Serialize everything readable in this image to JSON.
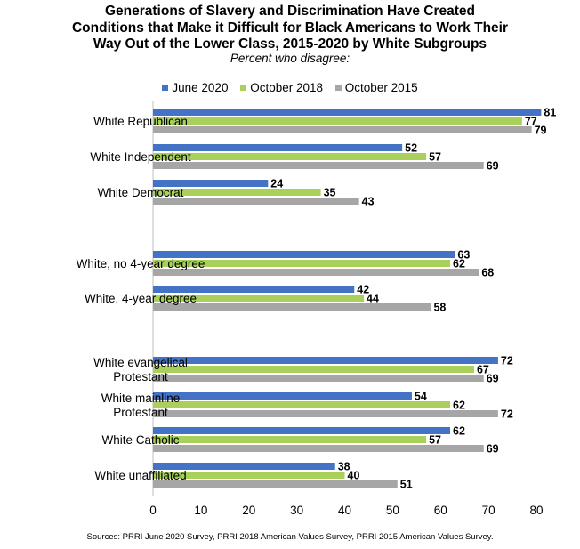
{
  "title_lines": [
    "Generations of Slavery and Discrimination Have Created",
    "Conditions that Make it Difficult for Black Americans to Work Their",
    "Way Out of the Lower Class, 2015-2020 by White Subgroups"
  ],
  "subtitle": "Percent who disagree:",
  "source": "Sources: PRRI June 2020 Survey, PRRI 2018 American Values Survey, PRRI 2015 American Values Survey.",
  "colors": {
    "June 2020": "#4472c4",
    "October 2018": "#a9d05a",
    "October 2015": "#a6a6a6"
  },
  "chart_data": {
    "type": "bar",
    "orientation": "horizontal",
    "categories": [
      "White Republican",
      "White Independent",
      "White Democrat",
      "White, no 4-year degree",
      "White, 4-year degree",
      "White evangelical Protestant",
      "White mainline Protestant",
      "White Catholic",
      "White unaffiliated"
    ],
    "category_label_lines": [
      [
        "White Republican"
      ],
      [
        "White Independent"
      ],
      [
        "White Democrat"
      ],
      [
        "White, no 4-year degree"
      ],
      [
        "White, 4-year degree"
      ],
      [
        "White evangelical",
        "Protestant"
      ],
      [
        "White mainline",
        "Protestant"
      ],
      [
        "White Catholic"
      ],
      [
        "White unaffiliated"
      ]
    ],
    "category_groups": [
      [
        0,
        1,
        2
      ],
      [
        3,
        4
      ],
      [
        5,
        6,
        7,
        8
      ]
    ],
    "series": [
      {
        "name": "June 2020",
        "values": [
          81,
          52,
          24,
          63,
          42,
          72,
          54,
          62,
          38
        ]
      },
      {
        "name": "October 2018",
        "values": [
          77,
          57,
          35,
          62,
          44,
          67,
          62,
          57,
          40
        ]
      },
      {
        "name": "October 2015",
        "values": [
          79,
          69,
          43,
          68,
          58,
          69,
          72,
          69,
          51
        ]
      }
    ],
    "xlim": [
      0,
      80
    ],
    "xticks": [
      0,
      10,
      20,
      30,
      40,
      50,
      60,
      70,
      80
    ],
    "legend_position": "top",
    "grid": false,
    "data_labels": true
  }
}
